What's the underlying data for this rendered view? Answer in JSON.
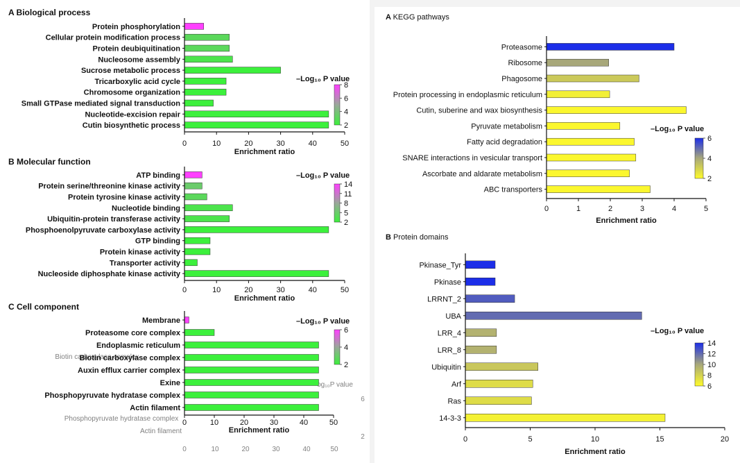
{
  "chart_data": [
    {
      "id": "bp",
      "panel_letter": "A",
      "title": "Biological process",
      "type": "bar",
      "orientation": "horizontal",
      "categories": [
        "Protein phosphorylation",
        "Cellular protein modification process",
        "Protein deubiquitination",
        "Nucleosome assembly",
        "Sucrose metabolic process",
        "Tricarboxylic acid cycle",
        "Chromosome organization",
        "Small GTPase mediated signal transduction",
        "Nucleotide-excision repair",
        "Cutin biosynthetic process"
      ],
      "values": [
        6,
        14,
        14,
        15,
        30,
        13,
        13,
        9,
        45,
        45
      ],
      "log_p": [
        8,
        3,
        3,
        2.5,
        2,
        2,
        2,
        2,
        2,
        2
      ],
      "xlim": [
        0,
        50
      ],
      "xticks": [
        "0",
        "10",
        "20",
        "30",
        "40",
        "50"
      ],
      "xlabel": "Enrichment ratio",
      "legend_title": "–Log₁₀ P value",
      "legend_ticks": [
        "8",
        "6",
        "4",
        "2"
      ],
      "legend_range": [
        2,
        8
      ],
      "colormap": "green-magenta"
    },
    {
      "id": "mf",
      "panel_letter": "B",
      "title": "Molecular  function",
      "type": "bar",
      "orientation": "horizontal",
      "categories": [
        "ATP binding",
        "Protein serine/threonine kinase activity",
        "Protein tyrosine kinase activity",
        "Nucleotide binding",
        "Ubiquitin-protein transferase activity",
        "Phosphoenolpyruvate carboxylase activity",
        "GTP binding",
        "Protein kinase activity",
        "Transporter activity",
        "Nucleoside diphosphate kinase activity"
      ],
      "values": [
        5.5,
        5.5,
        7,
        15,
        14,
        45,
        8,
        8,
        4,
        45
      ],
      "log_p": [
        14,
        5,
        4,
        3,
        3,
        2,
        2,
        2,
        2,
        2
      ],
      "xlim": [
        0,
        50
      ],
      "xticks": [
        "0",
        "10",
        "20",
        "30",
        "40",
        "50"
      ],
      "xlabel": "Enrichment ratio",
      "legend_title": "–Log₁₀ P value",
      "legend_ticks": [
        "14",
        "11",
        "8",
        "5",
        "2"
      ],
      "legend_range": [
        2,
        14
      ],
      "colormap": "green-magenta"
    },
    {
      "id": "cc",
      "panel_letter": "C",
      "title": "Cell component",
      "type": "bar",
      "orientation": "horizontal",
      "categories": [
        "Membrane",
        "Proteasome core complex",
        "Endoplasmic reticulum",
        "Biotin carboxylase complex",
        "Auxin efflux carrier complex",
        "Exine",
        "Phosphopyruvate hydratase complex",
        "Actin filament"
      ],
      "values": [
        1.5,
        10,
        45,
        45,
        45,
        45,
        45,
        45
      ],
      "log_p": [
        6,
        2,
        2,
        2,
        2,
        2,
        2,
        2
      ],
      "xlim": [
        0,
        50
      ],
      "xticks": [
        "0",
        "10",
        "20",
        "30",
        "40",
        "50"
      ],
      "xlabel": "Enrichment ratio",
      "legend_title": "–Log₁₀ P value",
      "legend_ticks": [
        "6",
        "4",
        "2"
      ],
      "legend_range": [
        2,
        6
      ],
      "colormap": "green-magenta",
      "ghost_text": [
        "Biotin carboxylase complex",
        "Phosphopyruvate hydratase complex",
        "Actin filament",
        "og₁₀P value",
        "6",
        "2",
        "0",
        "10",
        "20",
        "30",
        "40",
        "50"
      ]
    },
    {
      "id": "kegg",
      "panel_letter": "A",
      "title": "KEGG pathways",
      "type": "bar",
      "orientation": "horizontal",
      "categories": [
        "Proteasome",
        "Ribosome",
        "Phagosome",
        "Protein processing in endoplasmic reticulum",
        "Cutin, suberine and wax biosynthesis",
        "Pyruvate metabolism",
        "Fatty acid degradation",
        "SNARE interactions in vesicular transport",
        "Ascorbate and aldarate metabolism",
        "ABC transporters"
      ],
      "values": [
        4.0,
        1.95,
        2.9,
        1.98,
        4.38,
        2.3,
        2.75,
        2.8,
        2.6,
        3.25
      ],
      "log_p": [
        6,
        4,
        3.2,
        2.3,
        2.1,
        2.1,
        2.1,
        2.1,
        2.1,
        2.1
      ],
      "xlim": [
        0,
        5
      ],
      "xticks": [
        "0",
        "1",
        "2",
        "3",
        "4",
        "5"
      ],
      "xlabel": "Enrichment ratio",
      "legend_title": "–Log₁₀ P value",
      "legend_ticks": [
        "6",
        "4",
        "2"
      ],
      "legend_range": [
        2,
        6
      ],
      "colormap": "yellow-blue"
    },
    {
      "id": "pd",
      "panel_letter": "B",
      "title": "Protein domains",
      "type": "bar",
      "orientation": "horizontal",
      "categories": [
        "Pkinase_Tyr",
        "Pkinase",
        "LRRNT_2",
        "UBA",
        "LRR_4",
        "LRR_8",
        "Ubiquitin",
        "Arf",
        "Ras",
        "14-3-3"
      ],
      "values": [
        2.3,
        2.3,
        3.8,
        13.6,
        2.4,
        2.4,
        5.6,
        5.2,
        5.1,
        15.4
      ],
      "log_p": [
        14,
        14,
        12.5,
        12,
        9.5,
        9.5,
        8.5,
        7.5,
        7.5,
        6.5
      ],
      "xlim": [
        0,
        20
      ],
      "xticks": [
        "0",
        "5",
        "10",
        "15",
        "20"
      ],
      "xlabel": "Enrichment ratio",
      "legend_title": "–Log₁₀ P value",
      "legend_ticks": [
        "14",
        "12",
        "10",
        "8",
        "6"
      ],
      "legend_range": [
        6,
        14
      ],
      "colormap": "yellow-blue"
    }
  ]
}
